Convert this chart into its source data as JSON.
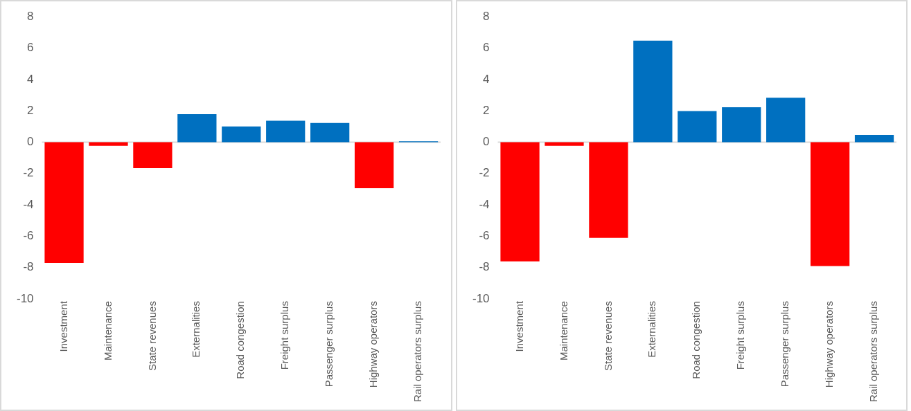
{
  "chart_data": [
    {
      "type": "bar",
      "categories": [
        "Investment",
        "Maintenance",
        "State revenues",
        "Externalities",
        "Road congestion",
        "Freight surplus",
        "Passenger surplus",
        "Highway operators",
        "Rail operators surplus"
      ],
      "values": [
        -7.7,
        -0.23,
        -1.66,
        1.79,
        1.0,
        1.37,
        1.22,
        -2.93,
        0.05
      ],
      "colors": [
        "#ff0000",
        "#ff0000",
        "#ff0000",
        "#0070c0",
        "#0070c0",
        "#0070c0",
        "#0070c0",
        "#ff0000",
        "#0070c0"
      ],
      "ylim": [
        -10,
        8
      ],
      "yticks": [
        -10,
        -8,
        -6,
        -4,
        -2,
        0,
        2,
        4,
        6,
        8
      ],
      "legend": false
    },
    {
      "type": "bar",
      "categories": [
        "Investment",
        "Maintenance",
        "State revenues",
        "Externalities",
        "Road congestion",
        "Freight surplus",
        "Passenger surplus",
        "Highway operators",
        "Rail operators surplus"
      ],
      "values": [
        -7.6,
        -0.23,
        -6.1,
        6.48,
        1.98,
        2.23,
        2.83,
        -7.9,
        0.46
      ],
      "colors": [
        "#ff0000",
        "#ff0000",
        "#ff0000",
        "#0070c0",
        "#0070c0",
        "#0070c0",
        "#0070c0",
        "#ff0000",
        "#0070c0"
      ],
      "ylim": [
        -10,
        8
      ],
      "yticks": [
        -10,
        -8,
        -6,
        -4,
        -2,
        0,
        2,
        4,
        6,
        8
      ],
      "legend": false
    }
  ]
}
